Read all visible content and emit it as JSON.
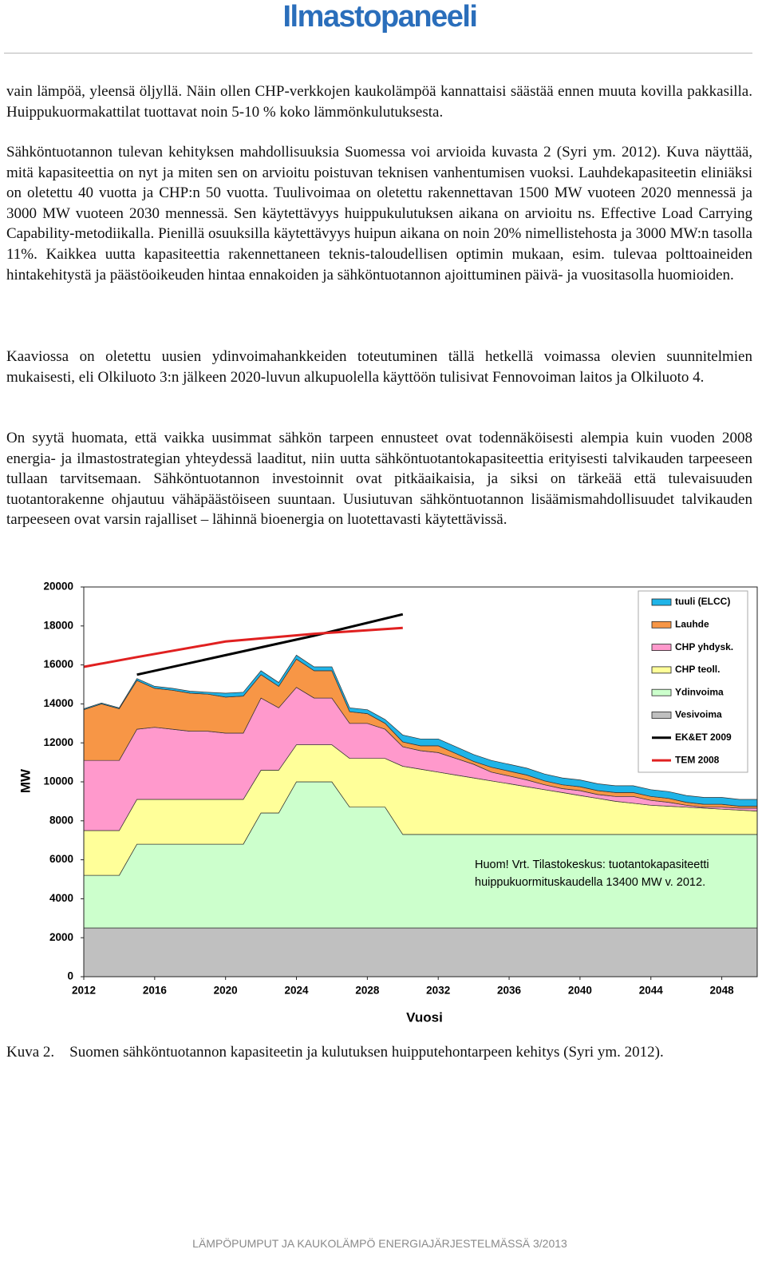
{
  "header": {
    "logo": "Ilmastopaneeli"
  },
  "paragraphs": [
    "vain lämpöä, yleensä öljyllä. Näin ollen CHP-verkkojen kaukolämpöä kannattaisi säästää ennen muuta kovilla pakkasilla. Huippukuormakattilat tuottavat noin 5-10 % koko lämmönkulutuksesta.",
    "Sähköntuotannon tulevan kehityksen mahdollisuuksia Suomessa voi arvioida kuvasta 2 (Syri ym. 2012). Kuva näyttää, mitä kapasiteettia on nyt ja miten sen on arvioitu poistuvan teknisen vanhentumisen vuoksi. Lauhdekapasiteetin eliniäksi on oletettu 40 vuotta ja CHP:n 50 vuotta. Tuulivoimaa on oletettu rakennettavan 1500 MW vuoteen 2020 mennessä ja 3000 MW vuoteen 2030 mennessä. Sen käytettävyys huippukulutuksen aikana on arvioitu ns. Effective Load Carrying Capability-metodiikalla. Pienillä osuuksilla käytettävyys huipun aikana on noin 20% nimellistehosta ja 3000 MW:n tasolla 11%. Kaikkea uutta kapasiteettia rakennettaneen teknis-taloudellisen optimin mukaan, esim. tulevaa polttoaineiden hintakehitystä ja päästöoikeuden hintaa ennakoiden ja sähköntuotannon ajoittuminen päivä- ja vuositasolla huomioiden.",
    "Kaaviossa on oletettu uusien ydinvoimahankkeiden toteutuminen tällä hetkellä voimassa olevien suunnitelmien mukaisesti, eli Olkiluoto 3:n jälkeen 2020-luvun alkupuolella käyttöön tulisivat Fennovoiman laitos ja Olkiluoto 4.",
    "On syytä huomata, että vaikka uusimmat sähkön tarpeen ennusteet ovat todennäköisesti alempia kuin vuoden 2008 energia- ja ilmastostrategian yhteydessä laaditut, niin uutta sähköntuotantokapasiteettia erityisesti talvikauden tarpeeseen tullaan tarvitsemaan. Sähköntuotannon investoinnit ovat pitkäaikaisia, ja siksi on tärkeää että tulevaisuuden tuotantorakenne ohjautuu vähäpäästöiseen suuntaan. Uusiutuvan sähköntuotannon lisäämismahdollisuudet talvikauden tarpeeseen ovat varsin rajalliset – lähinnä bioenergia on luotettavasti käytettävissä."
  ],
  "chart_data": {
    "type": "stacked-area",
    "x_label": "Vuosi",
    "y_label": "MW",
    "annotation": [
      "Huom! Vrt. Tilastokeskus: tuotantokapasiteetti",
      "huippukuormituskaudella 13400 MW v. 2012."
    ],
    "xlim": [
      2012,
      2050
    ],
    "xticks": [
      2012,
      2016,
      2020,
      2024,
      2028,
      2032,
      2036,
      2040,
      2044,
      2048
    ],
    "ylim": [
      0,
      20000
    ],
    "yticks": [
      0,
      2000,
      4000,
      6000,
      8000,
      10000,
      12000,
      14000,
      16000,
      18000,
      20000
    ],
    "x": [
      2012,
      2013,
      2014,
      2015,
      2016,
      2017,
      2018,
      2019,
      2020,
      2021,
      2022,
      2023,
      2024,
      2025,
      2026,
      2027,
      2028,
      2029,
      2030,
      2031,
      2032,
      2033,
      2034,
      2035,
      2036,
      2037,
      2038,
      2039,
      2040,
      2041,
      2042,
      2043,
      2044,
      2045,
      2046,
      2047,
      2048,
      2049,
      2050
    ],
    "series": [
      {
        "name": "Vesivoima",
        "color": "#c0c0c0",
        "values": [
          2500,
          2500,
          2500,
          2500,
          2500,
          2500,
          2500,
          2500,
          2500,
          2500,
          2500,
          2500,
          2500,
          2500,
          2500,
          2500,
          2500,
          2500,
          2500,
          2500,
          2500,
          2500,
          2500,
          2500,
          2500,
          2500,
          2500,
          2500,
          2500,
          2500,
          2500,
          2500,
          2500,
          2500,
          2500,
          2500,
          2500,
          2500,
          2500
        ]
      },
      {
        "name": "Ydinvoima",
        "color": "#ccffcc",
        "values": [
          2700,
          2700,
          2700,
          4300,
          4300,
          4300,
          4300,
          4300,
          4300,
          4300,
          5900,
          5900,
          7500,
          7500,
          7500,
          6200,
          6200,
          6200,
          4800,
          4800,
          4800,
          4800,
          4800,
          4800,
          4800,
          4800,
          4800,
          4800,
          4800,
          4800,
          4800,
          4800,
          4800,
          4800,
          4800,
          4800,
          4800,
          4800,
          4800
        ]
      },
      {
        "name": "CHP teoll.",
        "color": "#ffff99",
        "values": [
          2300,
          2300,
          2300,
          2300,
          2300,
          2300,
          2300,
          2300,
          2300,
          2300,
          2200,
          2200,
          1900,
          1900,
          1900,
          2500,
          2500,
          2500,
          3500,
          3350,
          3200,
          3050,
          2900,
          2750,
          2600,
          2450,
          2300,
          2150,
          2000,
          1850,
          1700,
          1600,
          1500,
          1450,
          1400,
          1350,
          1300,
          1250,
          1200
        ]
      },
      {
        "name": "CHP yhdysk.",
        "color": "#ff99cc",
        "values": [
          3600,
          3600,
          3600,
          3600,
          3700,
          3600,
          3500,
          3500,
          3400,
          3400,
          3700,
          3200,
          2950,
          2400,
          2400,
          1800,
          1800,
          1500,
          1000,
          950,
          1000,
          850,
          700,
          450,
          400,
          350,
          250,
          200,
          250,
          200,
          250,
          350,
          250,
          200,
          100,
          50,
          100,
          100,
          150
        ]
      },
      {
        "name": "Lauhde",
        "color": "#f79646",
        "values": [
          2600,
          2900,
          2650,
          2500,
          2000,
          2000,
          1950,
          1900,
          1850,
          1900,
          1200,
          1100,
          1450,
          1400,
          1400,
          600,
          500,
          300,
          250,
          250,
          350,
          250,
          150,
          250,
          250,
          250,
          200,
          200,
          200,
          200,
          200,
          200,
          200,
          200,
          150,
          150,
          150,
          100,
          100
        ]
      },
      {
        "name": "tuuli (ELCC)",
        "color": "#1fb4e8",
        "values": [
          50,
          50,
          50,
          100,
          100,
          100,
          100,
          100,
          200,
          200,
          200,
          200,
          200,
          200,
          200,
          200,
          200,
          200,
          350,
          350,
          350,
          350,
          350,
          350,
          350,
          350,
          350,
          350,
          350,
          350,
          350,
          350,
          350,
          350,
          350,
          350,
          350,
          350,
          350
        ]
      }
    ],
    "lines": [
      {
        "name": "EK&ET 2009",
        "color": "#000000",
        "x": [
          2015,
          2020,
          2025,
          2030
        ],
        "values": [
          15500,
          16500,
          17500,
          18600
        ]
      },
      {
        "name": "TEM 2008",
        "color": "#e02020",
        "x": [
          2012,
          2015,
          2020,
          2025,
          2030
        ],
        "values": [
          15900,
          16400,
          17200,
          17600,
          17900
        ]
      }
    ]
  },
  "caption": {
    "label": "Kuva 2.",
    "text": "Suomen sähköntuotannon kapasiteetin ja kulutuksen huipputehontarpeen kehitys (Syri ym. 2012)."
  },
  "footer": "LÄMPÖPUMPUT JA KAUKOLÄMPÖ ENERGIAJÄRJESTELMÄSSÄ 3/2013"
}
